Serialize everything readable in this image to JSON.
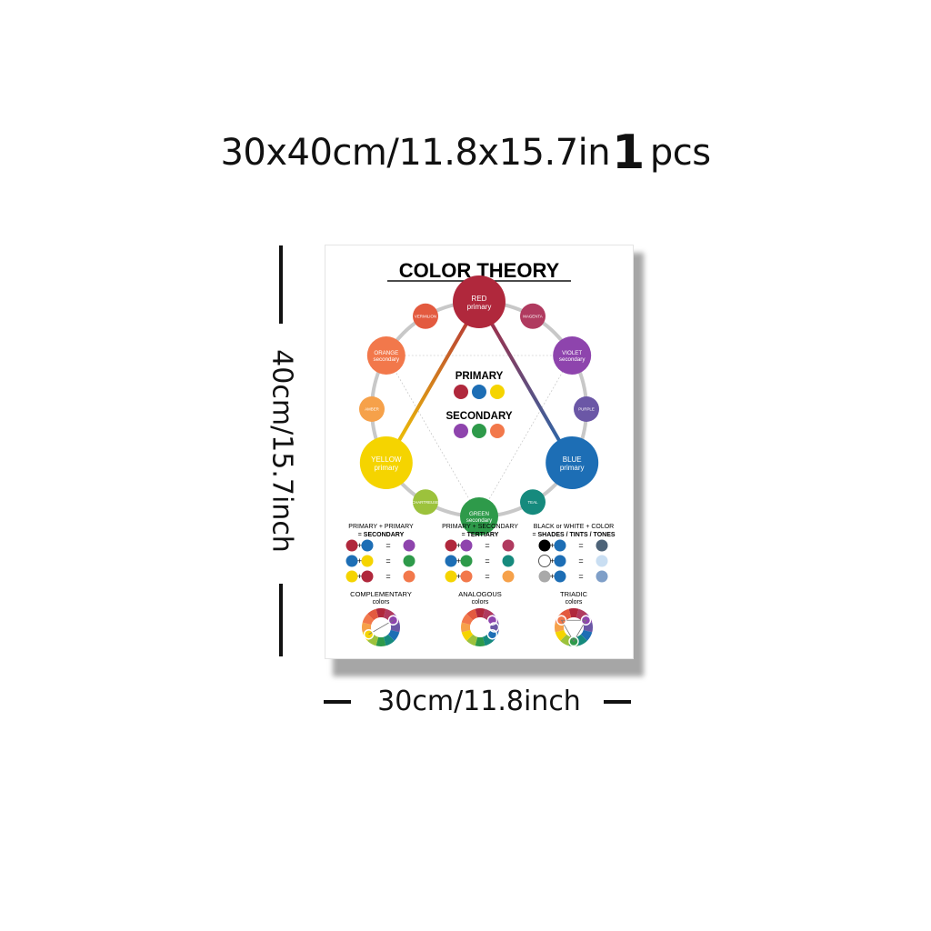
{
  "header": {
    "size_text": "30x40cm/11.8x15.7in",
    "quantity": "1",
    "unit": "pcs"
  },
  "poster": {
    "title": "COLOR THEORY",
    "wheel": {
      "nodes": [
        {
          "id": "red",
          "name": "RED",
          "type": "primary",
          "color": "#b0283c"
        },
        {
          "id": "magenta",
          "name": "MAGENTA",
          "type": "",
          "color": "#b03a5f"
        },
        {
          "id": "violet",
          "name": "VIOLET",
          "type": "secondary",
          "color": "#8e44ad"
        },
        {
          "id": "purple",
          "name": "PURPLE",
          "type": "",
          "color": "#6b57a6"
        },
        {
          "id": "blue",
          "name": "BLUE",
          "type": "primary",
          "color": "#1d6eb5"
        },
        {
          "id": "teal",
          "name": "TEAL",
          "type": "",
          "color": "#168a7d"
        },
        {
          "id": "green",
          "name": "GREEN",
          "type": "secondary",
          "color": "#2e9a4a"
        },
        {
          "id": "chartreuse",
          "name": "CHARTREUSE",
          "type": "",
          "color": "#9cc23c"
        },
        {
          "id": "yellow",
          "name": "YELLOW",
          "type": "primary",
          "color": "#f5d400"
        },
        {
          "id": "amber",
          "name": "AMBER",
          "type": "",
          "color": "#f6a14a"
        },
        {
          "id": "orange",
          "name": "ORANGE",
          "type": "secondary",
          "color": "#f2784b"
        },
        {
          "id": "vermilion",
          "name": "VERMILION",
          "type": "",
          "color": "#e35a3f"
        }
      ],
      "center_primary_label": "PRIMARY",
      "center_secondary_label": "SECONDARY"
    },
    "mixing": [
      {
        "heading_line1": "PRIMARY + PRIMARY",
        "heading_line2": "SECONDARY",
        "rows": [
          [
            "#b0283c",
            "#1d6eb5",
            "#8e44ad"
          ],
          [
            "#1d6eb5",
            "#f5d400",
            "#2e9a4a"
          ],
          [
            "#f5d400",
            "#b0283c",
            "#f2784b"
          ]
        ]
      },
      {
        "heading_line1": "PRIMARY + SECONDARY",
        "heading_line2": "TERTIARY",
        "rows": [
          [
            "#b0283c",
            "#8e44ad",
            "#b03a5f"
          ],
          [
            "#1d6eb5",
            "#2e9a4a",
            "#168a7d"
          ],
          [
            "#f5d400",
            "#f2784b",
            "#f6a14a"
          ]
        ]
      },
      {
        "heading_line1": "BLACK or WHITE + COLOR",
        "heading_line2": "SHADES / TINTS / TONES",
        "rows": [
          [
            "#000000",
            "#1d6eb5",
            "#4d6378"
          ],
          [
            "#ffffff",
            "#1d6eb5",
            "#c9def2"
          ],
          [
            "#a9a9a9",
            "#1d6eb5",
            "#7f9fc8"
          ]
        ]
      }
    ],
    "schemes": [
      {
        "name": "COMPLEMENTARY",
        "sub": "colors"
      },
      {
        "name": "ANALOGOUS",
        "sub": "colors"
      },
      {
        "name": "TRIADIC",
        "sub": "colors"
      }
    ]
  },
  "dimensions": {
    "width_label": "30cm/11.8inch",
    "height_label": "40cm/15.7inch"
  }
}
